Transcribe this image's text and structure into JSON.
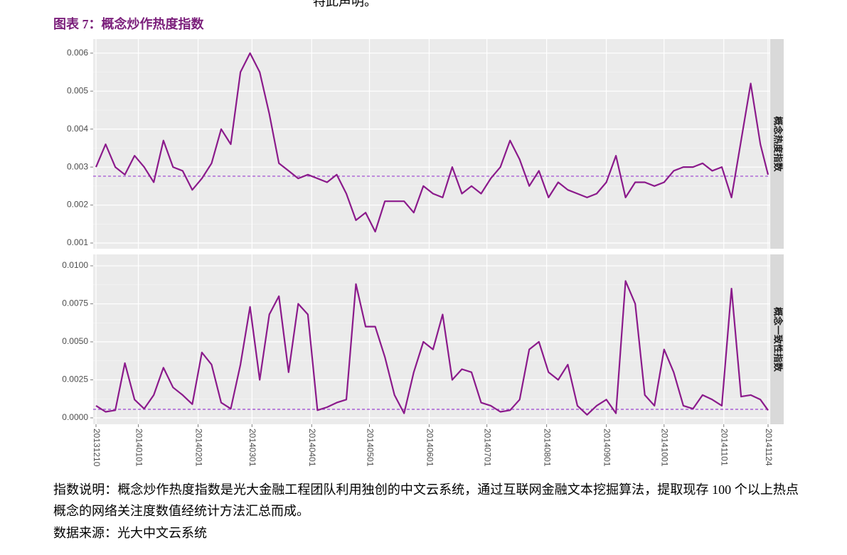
{
  "header_text": "特此声明。",
  "figure_title": "图表 7：概念炒作热度指数",
  "note": "指数说明：概念炒作热度指数是光大金融工程团队利用独创的中文云系统，通过互联网金融文本挖掘算法，提取现存 100 个以上热点概念的网络关注度数值经统计方法汇总而成。",
  "source": "数据来源：光大中文云系统",
  "chart_data": [
    {
      "type": "line",
      "title": "概念热度指数",
      "x": [
        "20131210",
        "20131215",
        "20131220",
        "20131225",
        "20131230",
        "20140104",
        "20140109",
        "20140114",
        "20140119",
        "20140124",
        "20140129",
        "20140203",
        "20140208",
        "20140213",
        "20140218",
        "20140223",
        "20140228",
        "20140305",
        "20140310",
        "20140315",
        "20140320",
        "20140325",
        "20140330",
        "20140404",
        "20140409",
        "20140414",
        "20140419",
        "20140424",
        "20140429",
        "20140504",
        "20140509",
        "20140514",
        "20140519",
        "20140524",
        "20140529",
        "20140603",
        "20140608",
        "20140613",
        "20140618",
        "20140623",
        "20140628",
        "20140703",
        "20140708",
        "20140713",
        "20140718",
        "20140723",
        "20140728",
        "20140802",
        "20140807",
        "20140812",
        "20140817",
        "20140822",
        "20140827",
        "20140901",
        "20140906",
        "20140911",
        "20140916",
        "20140921",
        "20140926",
        "20141001",
        "20141006",
        "20141011",
        "20141016",
        "20141021",
        "20141026",
        "20141031",
        "20141105",
        "20141110",
        "20141115",
        "20141120",
        "20141124"
      ],
      "series": [
        {
          "name": "概念热度指数",
          "color": "#8b1a8b",
          "values": [
            0.003,
            0.0036,
            0.003,
            0.0028,
            0.0033,
            0.003,
            0.0026,
            0.0037,
            0.003,
            0.0029,
            0.0024,
            0.0027,
            0.0031,
            0.004,
            0.0036,
            0.0055,
            0.006,
            0.0055,
            0.0044,
            0.0031,
            0.0029,
            0.0027,
            0.0028,
            0.0027,
            0.0026,
            0.0028,
            0.0023,
            0.0016,
            0.0018,
            0.0013,
            0.0021,
            0.0021,
            0.0021,
            0.0018,
            0.0025,
            0.0023,
            0.0022,
            0.003,
            0.0023,
            0.0025,
            0.0023,
            0.0027,
            0.003,
            0.0037,
            0.0032,
            0.0025,
            0.0029,
            0.0022,
            0.0026,
            0.0024,
            0.0023,
            0.0022,
            0.0023,
            0.0026,
            0.0033,
            0.0022,
            0.0026,
            0.0026,
            0.0025,
            0.0026,
            0.0029,
            0.003,
            0.003,
            0.0031,
            0.0029,
            0.003,
            0.0022,
            0.0037,
            0.0052,
            0.0036,
            0.0028
          ]
        }
      ],
      "hline": 0.00276,
      "hline_color": "#9b40d0",
      "ylim": [
        0.00085,
        0.00637
      ],
      "yticks": [
        0.001,
        0.002,
        0.003,
        0.004,
        0.005,
        0.006
      ],
      "grid": true
    },
    {
      "type": "line",
      "title": "概念一致性指数",
      "x": [
        "20131210",
        "20131215",
        "20131220",
        "20131225",
        "20131230",
        "20140104",
        "20140109",
        "20140114",
        "20140119",
        "20140124",
        "20140129",
        "20140203",
        "20140208",
        "20140213",
        "20140218",
        "20140223",
        "20140228",
        "20140305",
        "20140310",
        "20140315",
        "20140320",
        "20140325",
        "20140330",
        "20140404",
        "20140409",
        "20140414",
        "20140419",
        "20140424",
        "20140429",
        "20140504",
        "20140509",
        "20140514",
        "20140519",
        "20140524",
        "20140529",
        "20140603",
        "20140608",
        "20140613",
        "20140618",
        "20140623",
        "20140628",
        "20140703",
        "20140708",
        "20140713",
        "20140718",
        "20140723",
        "20140728",
        "20140802",
        "20140807",
        "20140812",
        "20140817",
        "20140822",
        "20140827",
        "20140901",
        "20140906",
        "20140911",
        "20140916",
        "20140921",
        "20140926",
        "20141001",
        "20141006",
        "20141011",
        "20141016",
        "20141021",
        "20141026",
        "20141031",
        "20141105",
        "20141110",
        "20141115",
        "20141120",
        "20141124"
      ],
      "series": [
        {
          "name": "概念一致性指数",
          "color": "#8b1a8b",
          "values": [
            0.0008,
            0.0004,
            0.0005,
            0.0036,
            0.0012,
            0.0006,
            0.0015,
            0.0033,
            0.002,
            0.0015,
            0.0009,
            0.0043,
            0.0035,
            0.001,
            0.0006,
            0.0035,
            0.0073,
            0.0025,
            0.0068,
            0.008,
            0.003,
            0.0075,
            0.0068,
            0.0005,
            0.0007,
            0.001,
            0.0012,
            0.0088,
            0.006,
            0.006,
            0.004,
            0.0015,
            0.0003,
            0.003,
            0.005,
            0.0045,
            0.0068,
            0.0025,
            0.0032,
            0.003,
            0.001,
            0.0008,
            0.0004,
            0.0005,
            0.0012,
            0.0045,
            0.005,
            0.003,
            0.0025,
            0.0035,
            0.0008,
            0.0002,
            0.0008,
            0.0012,
            0.0003,
            0.009,
            0.0075,
            0.0015,
            0.0008,
            0.0045,
            0.003,
            0.0008,
            0.0006,
            0.0015,
            0.0012,
            0.0008,
            0.0085,
            0.0014,
            0.0015,
            0.0012,
            0.0005
          ]
        }
      ],
      "hline": 0.00056,
      "hline_color": "#9b40d0",
      "ylim": [
        -0.00042,
        0.01075
      ],
      "yticks": [
        {
          "value": 0,
          "label": "0.0000"
        },
        {
          "value": 0.0025,
          "label": "0.0025"
        },
        {
          "value": 0.005,
          "label": "0.0050"
        },
        {
          "value": 0.0075,
          "label": "0.0075"
        },
        {
          "value": 0.01,
          "label": "0.0100"
        }
      ],
      "xlim": [
        "20131210",
        "20141124"
      ],
      "xticks": [
        "20131210",
        "20140101",
        "20140201",
        "20140301",
        "20140401",
        "20140501",
        "20140601",
        "20140701",
        "20140801",
        "20140901",
        "20141001",
        "20141101",
        "20141124"
      ],
      "grid": true
    }
  ]
}
